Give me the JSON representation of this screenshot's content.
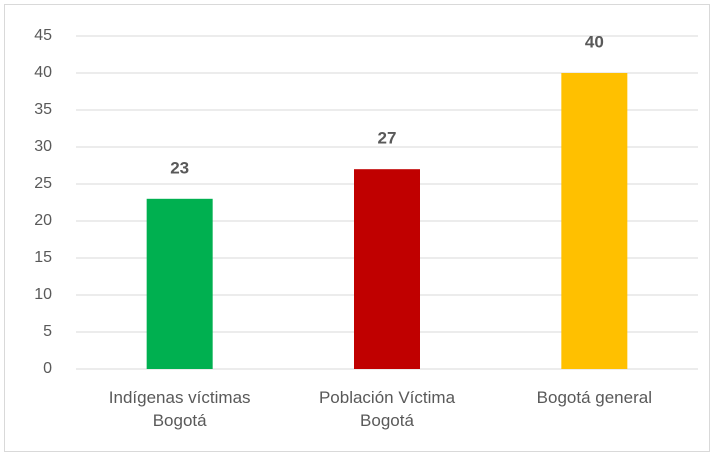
{
  "chart_data": {
    "type": "bar",
    "categories": [
      "Indígenas víctimas\nBogotá",
      "Población Víctima\nBogotá",
      "Bogotá general"
    ],
    "values": [
      23,
      27,
      40
    ],
    "colors": [
      "#00b050",
      "#c00000",
      "#ffc000"
    ],
    "ylim": [
      0,
      45
    ],
    "yticks": [
      0,
      5,
      10,
      15,
      20,
      25,
      30,
      35,
      40,
      45
    ],
    "grid": true
  }
}
